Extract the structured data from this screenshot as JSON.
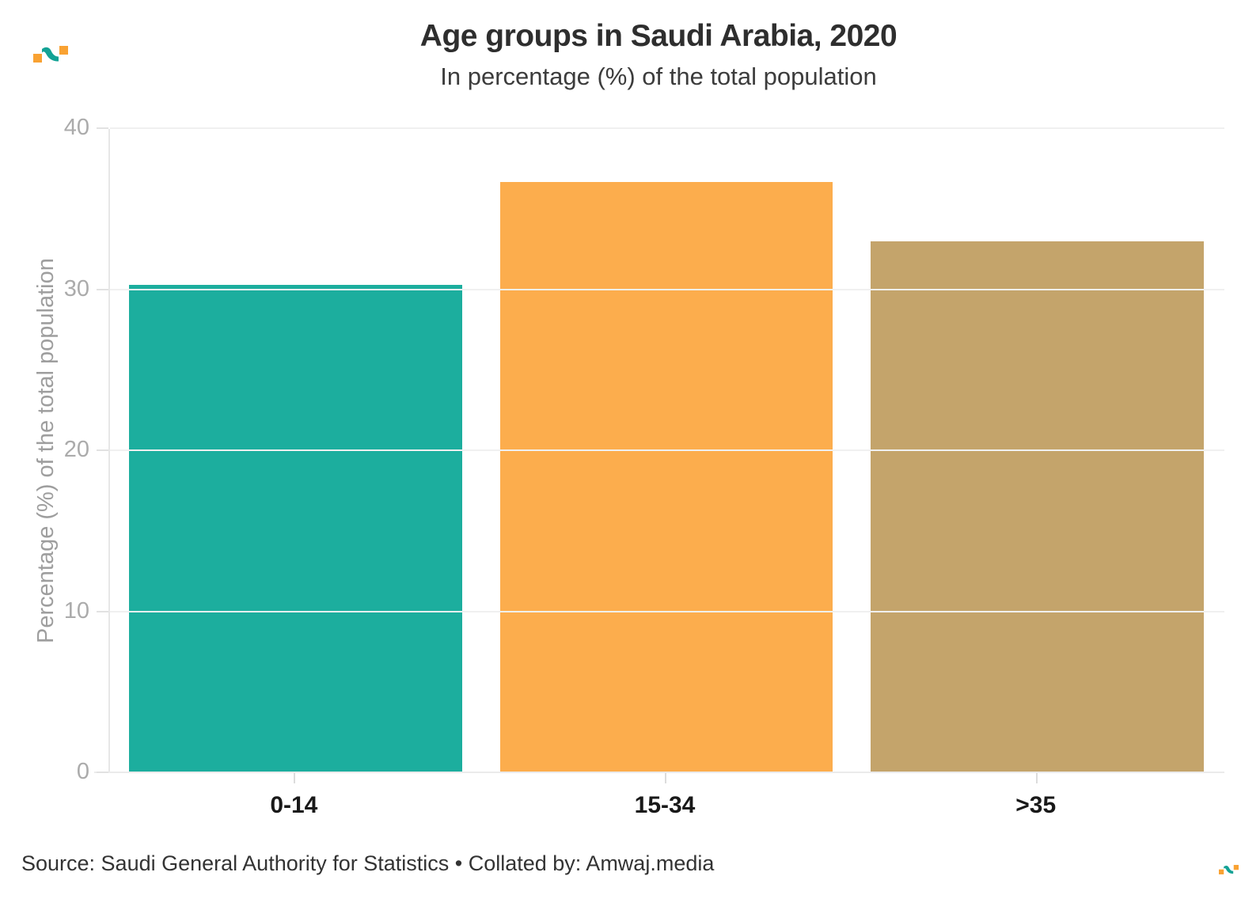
{
  "header": {
    "title": "Age groups in Saudi Arabia, 2020",
    "subtitle": "In percentage (%) of the total population"
  },
  "footer": {
    "source": "Source: Saudi General Authority for Statistics • Collated by: Amwaj.media"
  },
  "brand": {
    "orange": "#F9A232",
    "teal": "#13A295"
  },
  "chart_data": {
    "type": "bar",
    "title": "Age groups in Saudi Arabia, 2020",
    "subtitle": "In percentage (%) of the total population",
    "categories": [
      "0-14",
      "15-34",
      ">35"
    ],
    "values": [
      30.3,
      36.7,
      33.0
    ],
    "colors": [
      "#1CAE9E",
      "#FCAD4D",
      "#C4A46B"
    ],
    "xlabel": "",
    "ylabel": "Percentage (%) of the total population",
    "ylim": [
      0,
      40
    ],
    "yticks": [
      0,
      10,
      20,
      30,
      40
    ],
    "grid": "horizontal",
    "legend": "none",
    "source_note": "Source: Saudi General Authority for Statistics • Collated by: Amwaj.media"
  }
}
